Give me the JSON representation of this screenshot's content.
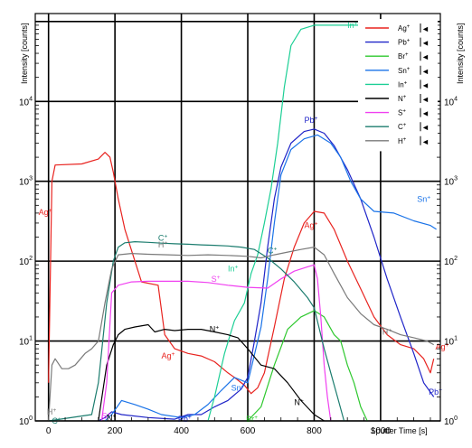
{
  "chart_data": {
    "type": "line",
    "title": "",
    "xlabel": "Sputter Time [s]",
    "ylabel": "Intensity [counts]",
    "xlim": [
      -40,
      1180
    ],
    "ylim_log10": [
      0,
      5.1
    ],
    "y_scale": "log",
    "grid": true,
    "legend_position": "top-right",
    "x_ticks": [
      0,
      200,
      400,
      600,
      800,
      1000
    ],
    "x_tick_labels": [
      "0",
      "200",
      "400",
      "600",
      "800",
      "1000"
    ],
    "y_ticks": [
      1,
      10,
      100,
      1000,
      10000
    ],
    "y_tick_labels": [
      "10",
      "10",
      "10",
      "10",
      "10"
    ],
    "y_tick_exponents": [
      "0",
      "1",
      "2",
      "3",
      "4"
    ],
    "legend_marker": "◄",
    "series": [
      {
        "name": "Ag+",
        "label": "Ag+",
        "color": "#e8231f",
        "label_at": [
          [
            -30,
            410
          ],
          [
            340,
            6.5
          ],
          [
            1165,
            8.5
          ],
          [
            770,
            280
          ]
        ],
        "points": [
          [
            0,
            3
          ],
          [
            10,
            1000
          ],
          [
            20,
            1600
          ],
          [
            100,
            1650
          ],
          [
            150,
            1900
          ],
          [
            170,
            2300
          ],
          [
            185,
            2000
          ],
          [
            195,
            1300
          ],
          [
            210,
            600
          ],
          [
            230,
            250
          ],
          [
            260,
            100
          ],
          [
            280,
            55
          ],
          [
            330,
            50
          ],
          [
            350,
            12
          ],
          [
            380,
            8
          ],
          [
            420,
            7
          ],
          [
            460,
            6.5
          ],
          [
            500,
            5.5
          ],
          [
            540,
            4
          ],
          [
            560,
            3.5
          ],
          [
            590,
            2.8
          ],
          [
            610,
            2.2
          ],
          [
            630,
            2.6
          ],
          [
            650,
            4
          ],
          [
            680,
            15
          ],
          [
            710,
            60
          ],
          [
            740,
            150
          ],
          [
            770,
            300
          ],
          [
            800,
            420
          ],
          [
            830,
            400
          ],
          [
            860,
            250
          ],
          [
            900,
            100
          ],
          [
            940,
            45
          ],
          [
            980,
            20
          ],
          [
            1020,
            12
          ],
          [
            1060,
            9
          ],
          [
            1100,
            8
          ],
          [
            1130,
            6
          ],
          [
            1150,
            4
          ],
          [
            1160,
            6
          ]
        ]
      },
      {
        "name": "Pb+",
        "label": "Pb+",
        "color": "#1f24c8",
        "label_at": [
          [
            390,
            1.05
          ],
          [
            770,
            5800
          ],
          [
            1145,
            2.3
          ]
        ],
        "points": [
          [
            150,
            1
          ],
          [
            170,
            1.1
          ],
          [
            190,
            1.3
          ],
          [
            220,
            1.2
          ],
          [
            300,
            1.1
          ],
          [
            380,
            1.05
          ],
          [
            420,
            1.2
          ],
          [
            460,
            1.2
          ],
          [
            500,
            1.5
          ],
          [
            540,
            1.8
          ],
          [
            580,
            2.5
          ],
          [
            600,
            3.5
          ],
          [
            620,
            10
          ],
          [
            640,
            30
          ],
          [
            660,
            150
          ],
          [
            680,
            600
          ],
          [
            700,
            1500
          ],
          [
            730,
            3000
          ],
          [
            770,
            4200
          ],
          [
            800,
            4500
          ],
          [
            830,
            4000
          ],
          [
            860,
            2800
          ],
          [
            900,
            1400
          ],
          [
            940,
            600
          ],
          [
            980,
            200
          ],
          [
            1020,
            60
          ],
          [
            1060,
            20
          ],
          [
            1100,
            7
          ],
          [
            1130,
            3
          ],
          [
            1160,
            2
          ]
        ]
      },
      {
        "name": "Br+",
        "label": "Br+",
        "color": "#2ec82e",
        "label_at": [
          [
            595,
            1.05
          ]
        ],
        "points": [
          [
            600,
            1
          ],
          [
            640,
            1.5
          ],
          [
            680,
            5
          ],
          [
            720,
            14
          ],
          [
            760,
            20
          ],
          [
            800,
            24
          ],
          [
            830,
            20
          ],
          [
            860,
            12
          ],
          [
            880,
            10
          ],
          [
            900,
            5
          ],
          [
            920,
            3
          ],
          [
            940,
            1.5
          ],
          [
            960,
            1
          ]
        ]
      },
      {
        "name": "Sn+",
        "label": "Sn+",
        "color": "#1a73e8",
        "label_at": [
          [
            550,
            2.6
          ],
          [
            1110,
            600
          ]
        ],
        "points": [
          [
            170,
            1
          ],
          [
            190,
            1.2
          ],
          [
            220,
            1.8
          ],
          [
            260,
            1.6
          ],
          [
            300,
            1.4
          ],
          [
            340,
            1.2
          ],
          [
            400,
            1.1
          ],
          [
            440,
            1.2
          ],
          [
            480,
            1.6
          ],
          [
            520,
            2.4
          ],
          [
            560,
            3.5
          ],
          [
            600,
            3
          ],
          [
            640,
            15
          ],
          [
            660,
            60
          ],
          [
            680,
            300
          ],
          [
            700,
            1200
          ],
          [
            730,
            2500
          ],
          [
            770,
            3400
          ],
          [
            810,
            3800
          ],
          [
            850,
            3000
          ],
          [
            880,
            2000
          ],
          [
            910,
            1000
          ],
          [
            940,
            600
          ],
          [
            980,
            420
          ],
          [
            1040,
            400
          ],
          [
            1100,
            320
          ],
          [
            1150,
            280
          ],
          [
            1168,
            250
          ]
        ]
      },
      {
        "name": "In+",
        "label": "In+",
        "color": "#1ccf95",
        "label_at": [
          [
            900,
            90000
          ],
          [
            540,
            80
          ]
        ],
        "points": [
          [
            480,
            1
          ],
          [
            500,
            2
          ],
          [
            530,
            7
          ],
          [
            560,
            18
          ],
          [
            590,
            30
          ],
          [
            610,
            70
          ],
          [
            630,
            120
          ],
          [
            650,
            300
          ],
          [
            670,
            800
          ],
          [
            690,
            3000
          ],
          [
            710,
            15000
          ],
          [
            730,
            50000
          ],
          [
            760,
            80000
          ],
          [
            800,
            90000
          ],
          [
            900,
            90000
          ],
          [
            1000,
            90000
          ],
          [
            1100,
            90000
          ],
          [
            1170,
            90000
          ]
        ]
      },
      {
        "name": "N+",
        "label": "N+",
        "color": "#000000",
        "label_at": [
          [
            485,
            14
          ],
          [
            740,
            1.7
          ],
          [
            175,
            1.1
          ]
        ],
        "points": [
          [
            150,
            1
          ],
          [
            175,
            5
          ],
          [
            195,
            9
          ],
          [
            210,
            12
          ],
          [
            230,
            14
          ],
          [
            260,
            15
          ],
          [
            300,
            16
          ],
          [
            320,
            13
          ],
          [
            350,
            14
          ],
          [
            380,
            13.5
          ],
          [
            420,
            14
          ],
          [
            460,
            14
          ],
          [
            500,
            13
          ],
          [
            540,
            12
          ],
          [
            570,
            11
          ],
          [
            600,
            8
          ],
          [
            640,
            5
          ],
          [
            680,
            4.5
          ],
          [
            720,
            3
          ],
          [
            760,
            1.8
          ],
          [
            800,
            1.2
          ],
          [
            830,
            1
          ]
        ]
      },
      {
        "name": "S+",
        "label": "S+",
        "color": "#f040f0",
        "label_at": [
          [
            490,
            60
          ],
          [
            160,
            1.15
          ]
        ],
        "points": [
          [
            160,
            1
          ],
          [
            175,
            3
          ],
          [
            190,
            40
          ],
          [
            210,
            50
          ],
          [
            250,
            55
          ],
          [
            300,
            56
          ],
          [
            360,
            56
          ],
          [
            420,
            56
          ],
          [
            480,
            54
          ],
          [
            540,
            50
          ],
          [
            600,
            47
          ],
          [
            660,
            46
          ],
          [
            700,
            60
          ],
          [
            740,
            75
          ],
          [
            780,
            85
          ],
          [
            800,
            90
          ],
          [
            810,
            60
          ],
          [
            820,
            20
          ],
          [
            830,
            5
          ],
          [
            840,
            2
          ],
          [
            850,
            1
          ]
        ]
      },
      {
        "name": "C+",
        "label": "C+",
        "color": "#1b7c6e",
        "label_at": [
          [
            10,
            1.0
          ],
          [
            330,
            195
          ],
          [
            660,
            135
          ]
        ],
        "points": [
          [
            0,
            1
          ],
          [
            130,
            1.2
          ],
          [
            150,
            3
          ],
          [
            175,
            30
          ],
          [
            195,
            100
          ],
          [
            210,
            150
          ],
          [
            230,
            170
          ],
          [
            260,
            175
          ],
          [
            300,
            172
          ],
          [
            340,
            168
          ],
          [
            380,
            165
          ],
          [
            420,
            163
          ],
          [
            460,
            160
          ],
          [
            500,
            158
          ],
          [
            540,
            155
          ],
          [
            580,
            150
          ],
          [
            620,
            140
          ],
          [
            660,
            110
          ],
          [
            700,
            80
          ],
          [
            740,
            55
          ],
          [
            780,
            35
          ],
          [
            800,
            26
          ],
          [
            830,
            8
          ],
          [
            850,
            4
          ],
          [
            870,
            2
          ],
          [
            890,
            1
          ]
        ]
      },
      {
        "name": "H+",
        "label": "H+",
        "color": "#7a7a7a",
        "label_at": [
          [
            -5,
            1.3
          ],
          [
            330,
            160
          ],
          [
            1005,
            13
          ]
        ],
        "points": [
          [
            0,
            1
          ],
          [
            10,
            5
          ],
          [
            20,
            6
          ],
          [
            40,
            4.5
          ],
          [
            60,
            4.5
          ],
          [
            80,
            5
          ],
          [
            110,
            7
          ],
          [
            130,
            8
          ],
          [
            150,
            10
          ],
          [
            170,
            30
          ],
          [
            190,
            80
          ],
          [
            210,
            120
          ],
          [
            250,
            125
          ],
          [
            300,
            122
          ],
          [
            360,
            120
          ],
          [
            420,
            118
          ],
          [
            480,
            120
          ],
          [
            540,
            118
          ],
          [
            600,
            115
          ],
          [
            640,
            110
          ],
          [
            680,
            120
          ],
          [
            720,
            130
          ],
          [
            760,
            140
          ],
          [
            800,
            150
          ],
          [
            830,
            120
          ],
          [
            860,
            70
          ],
          [
            900,
            35
          ],
          [
            940,
            22
          ],
          [
            980,
            16
          ],
          [
            1020,
            14
          ],
          [
            1060,
            12
          ],
          [
            1100,
            11
          ],
          [
            1140,
            10
          ],
          [
            1160,
            9
          ]
        ]
      }
    ]
  }
}
